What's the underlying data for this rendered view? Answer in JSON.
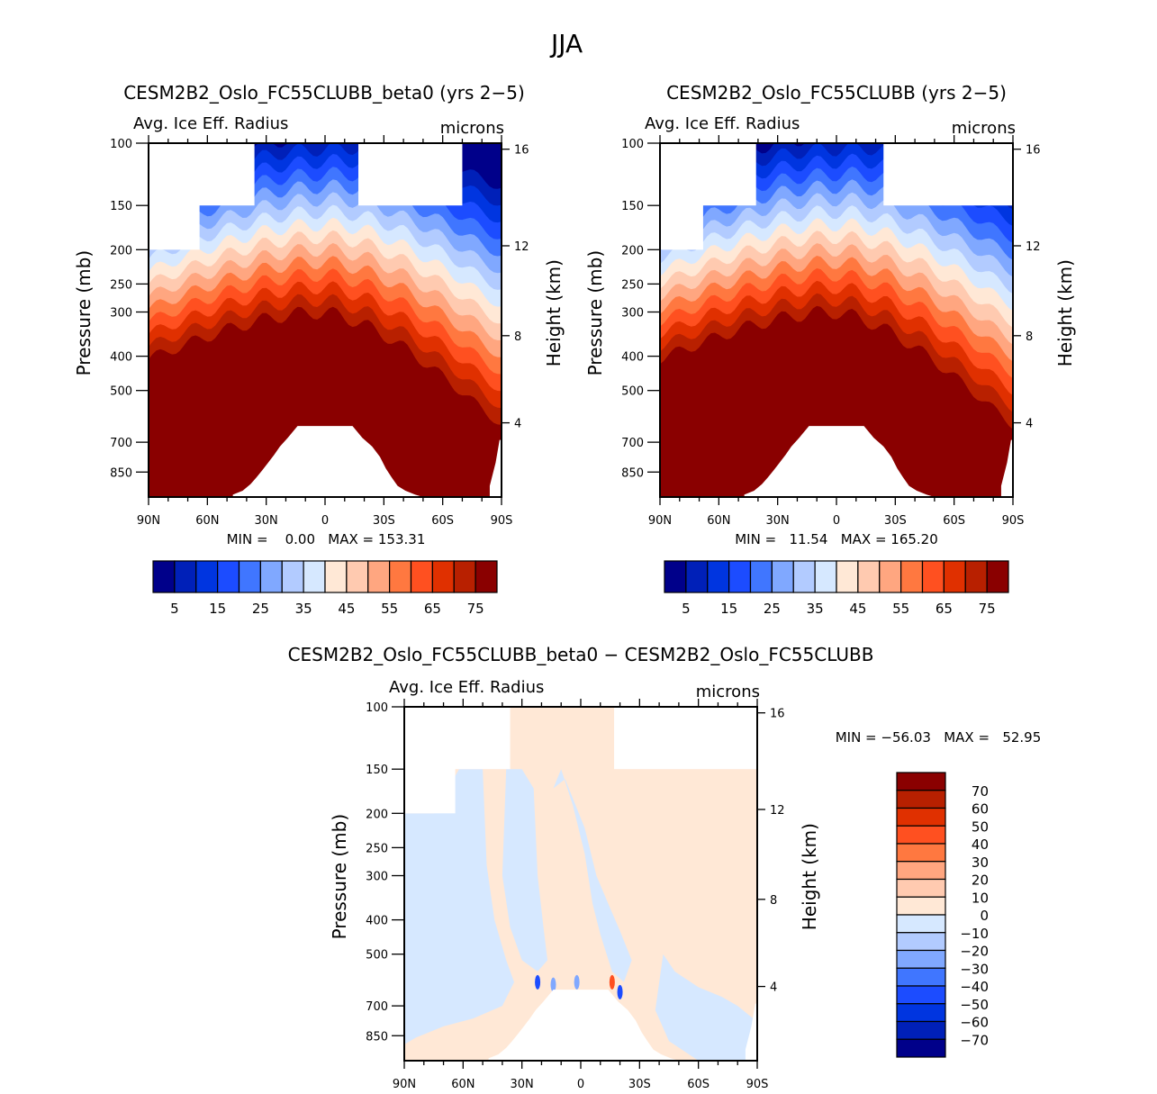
{
  "page_title": "JJA",
  "chart_data": [
    {
      "type": "heatmap",
      "id": "panel1",
      "title": "CESM2B2_Oslo_FC55CLUBB_beta0 (yrs 2−5)",
      "subtitle_left": "Avg. Ice Eff. Radius",
      "subtitle_right": "microns",
      "xlabel": "",
      "ylabel": "Pressure (mb)",
      "y2label": "Height (km)",
      "x_ticks": [
        "90N",
        "60N",
        "30N",
        "0",
        "30S",
        "60S",
        "90S"
      ],
      "x_range": [
        90,
        -90
      ],
      "y_ticks": [
        100,
        150,
        200,
        250,
        300,
        400,
        500,
        700,
        850
      ],
      "y_range_mb": [
        100,
        1000
      ],
      "y2_ticks": [
        16,
        12,
        8,
        4
      ],
      "stats": "MIN =    0.00   MAX = 153.31",
      "contour_levels": [
        5,
        10,
        15,
        20,
        25,
        30,
        35,
        40,
        45,
        50,
        55,
        60,
        65,
        70,
        75
      ],
      "colorbar_labels": [
        "5",
        "15",
        "25",
        "35",
        "45",
        "55",
        "65",
        "75"
      ],
      "colorbar_orientation": "horizontal",
      "field": "ice radius increasing downward; >75 microns below ~300-400 mb; <5-25 microns near 100 mb; missing above 150 mb poleward and in surface topography"
    },
    {
      "type": "heatmap",
      "id": "panel2",
      "title": "CESM2B2_Oslo_FC55CLUBB (yrs 2−5)",
      "subtitle_left": "Avg. Ice Eff. Radius",
      "subtitle_right": "microns",
      "ylabel": "Pressure (mb)",
      "y2label": "Height (km)",
      "x_ticks": [
        "90N",
        "60N",
        "30N",
        "0",
        "30S",
        "60S",
        "90S"
      ],
      "x_range": [
        90,
        -90
      ],
      "y_ticks": [
        100,
        150,
        200,
        250,
        300,
        400,
        500,
        700,
        850
      ],
      "y_range_mb": [
        100,
        1000
      ],
      "y2_ticks": [
        16,
        12,
        8,
        4
      ],
      "stats": "MIN =   11.54   MAX = 165.20",
      "contour_levels": [
        5,
        10,
        15,
        20,
        25,
        30,
        35,
        40,
        45,
        50,
        55,
        60,
        65,
        70,
        75
      ],
      "colorbar_labels": [
        "5",
        "15",
        "25",
        "35",
        "45",
        "55",
        "65",
        "75"
      ],
      "colorbar_orientation": "horizontal"
    },
    {
      "type": "heatmap",
      "id": "panel3",
      "title": "CESM2B2_Oslo_FC55CLUBB_beta0 − CESM2B2_Oslo_FC55CLUBB",
      "subtitle_left": "Avg. Ice Eff. Radius",
      "subtitle_right": "microns",
      "ylabel": "Pressure (mb)",
      "y2label": "Height (km)",
      "x_ticks": [
        "90N",
        "60N",
        "30N",
        "0",
        "30S",
        "60S",
        "90S"
      ],
      "x_range": [
        90,
        -90
      ],
      "y_ticks": [
        100,
        150,
        200,
        250,
        300,
        400,
        500,
        700,
        850
      ],
      "y_range_mb": [
        100,
        1000
      ],
      "y2_ticks": [
        16,
        12,
        8,
        4
      ],
      "stats": "MIN = −56.03   MAX =   52.95",
      "contour_levels": [
        -70,
        -60,
        -50,
        -40,
        -30,
        -20,
        -10,
        0,
        10,
        20,
        30,
        40,
        50,
        60,
        70
      ],
      "colorbar_labels": [
        "70",
        "60",
        "50",
        "40",
        "30",
        "20",
        "10",
        "0",
        "−10",
        "−20",
        "−30",
        "−40",
        "−50",
        "−60",
        "−70"
      ],
      "colorbar_orientation": "vertical",
      "field": "differences mostly within ±10 microns; small ±50 spots near tropical surface"
    }
  ],
  "colormap": [
    "#00008a",
    "#0020b8",
    "#0035e0",
    "#1c4cff",
    "#4076ff",
    "#80a8ff",
    "#b2cbff",
    "#d6e8ff",
    "#ffe8d6",
    "#ffcab0",
    "#ffa680",
    "#ff7840",
    "#ff5020",
    "#e03000",
    "#b82000",
    "#8a0000"
  ]
}
